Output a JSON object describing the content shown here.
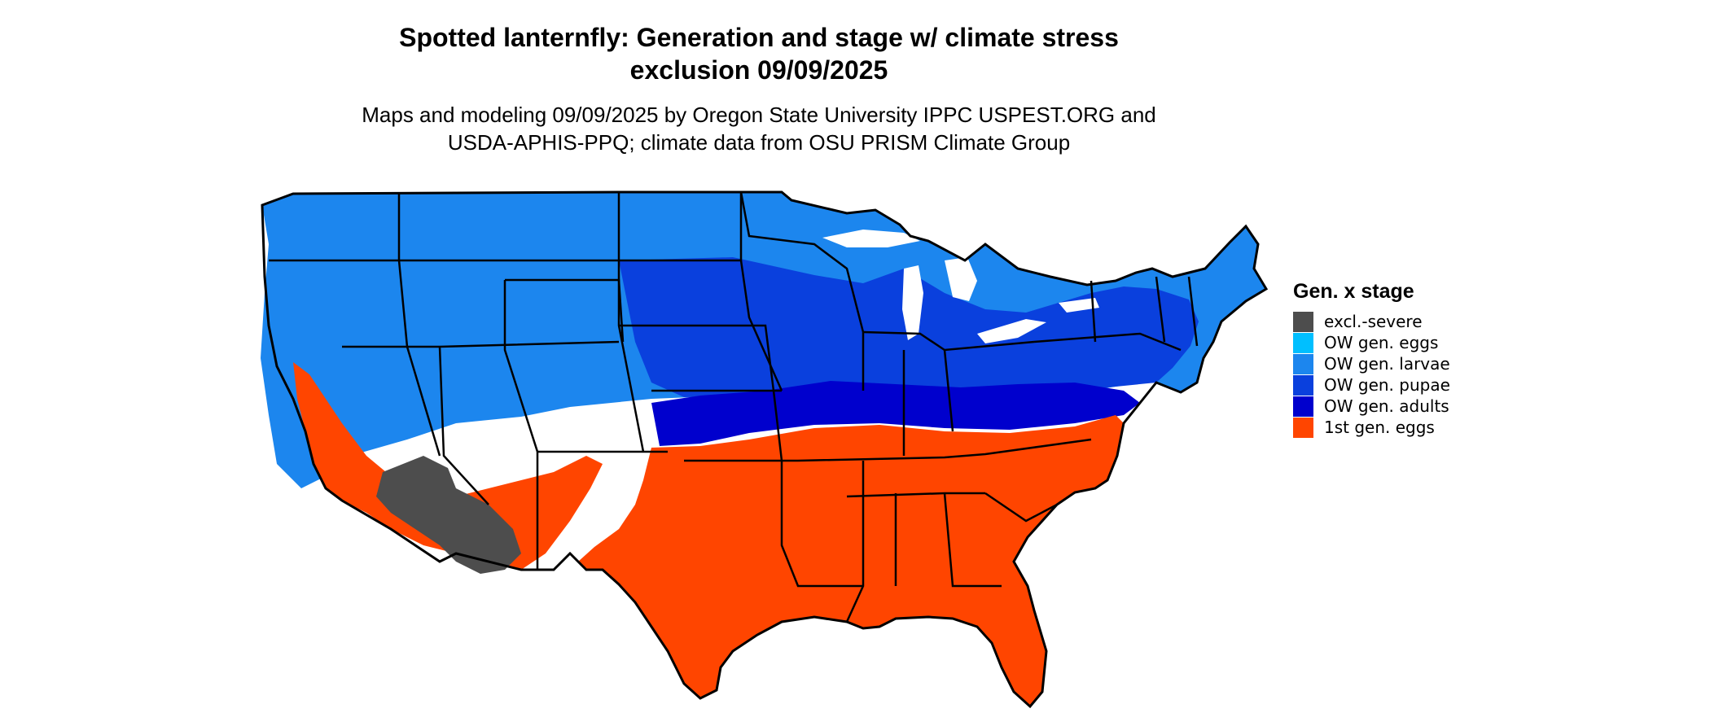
{
  "title_line1": "Spotted lanternfly: Generation and stage w/ climate stress",
  "title_line2": "exclusion 09/09/2025",
  "subtitle_line1": "Maps and modeling 09/09/2025 by Oregon State University IPPC USPEST.ORG and",
  "subtitle_line2": "USDA-APHIS-PPQ; climate data from OSU PRISM Climate Group",
  "legend": {
    "title": "Gen. x stage",
    "items": [
      {
        "label": "excl.-severe",
        "color": "#4d4d4d"
      },
      {
        "label": "OW gen. eggs",
        "color": "#00bfff"
      },
      {
        "label": "OW gen. larvae",
        "color": "#1c86ee"
      },
      {
        "label": "OW gen. pupae",
        "color": "#0a40dd"
      },
      {
        "label": "OW gen. adults",
        "color": "#0000cd"
      },
      {
        "label": "1st gen. eggs",
        "color": "#ff4500"
      }
    ]
  },
  "colors": {
    "boundary": "#000000"
  }
}
